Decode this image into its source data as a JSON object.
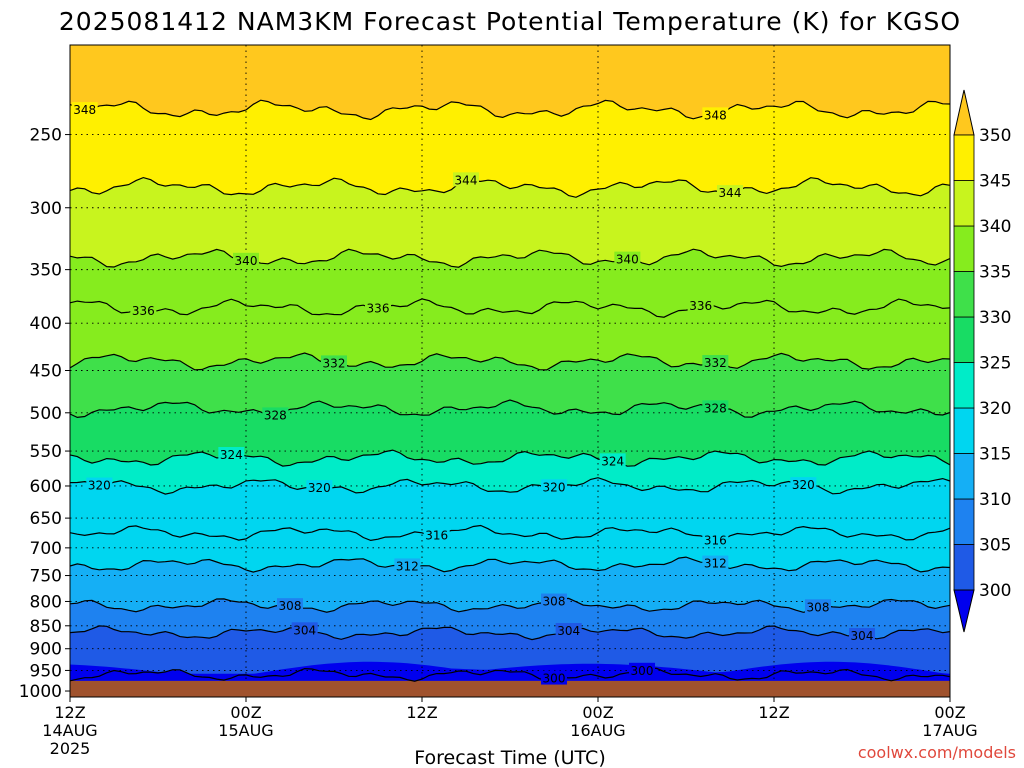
{
  "title": "2025081412 NAM3KM Forecast Potential Temperature (K) for KGSO",
  "credit": "coolwx.com/models",
  "chart_data": {
    "type": "heatmap",
    "title": "2025081412 NAM3KM Forecast Potential Temperature (K) for KGSO",
    "xlabel": "Forecast Time (UTC)",
    "ylabel": "",
    "x_ticks": [
      {
        "hours": 0,
        "lines": [
          "12Z",
          "14AUG",
          "2025"
        ]
      },
      {
        "hours": 12,
        "lines": [
          "00Z",
          "15AUG"
        ]
      },
      {
        "hours": 24,
        "lines": [
          "12Z"
        ]
      },
      {
        "hours": 36,
        "lines": [
          "00Z",
          "16AUG"
        ]
      },
      {
        "hours": 48,
        "lines": [
          "12Z"
        ]
      },
      {
        "hours": 60,
        "lines": [
          "00Z",
          "17AUG"
        ]
      }
    ],
    "xlim": [
      0,
      60
    ],
    "y_ticks": [
      250,
      300,
      350,
      400,
      450,
      500,
      550,
      600,
      650,
      700,
      750,
      800,
      850,
      900,
      950,
      1000
    ],
    "ylim": [
      1015,
      200
    ],
    "y_scale": "log",
    "ground_pressure": 975,
    "grid": true,
    "colorbar": {
      "levels": [
        300,
        305,
        310,
        315,
        320,
        325,
        330,
        335,
        340,
        345,
        350
      ],
      "colors": [
        "#0000ee",
        "#1f5ae6",
        "#1e82f0",
        "#15aff5",
        "#00d6f0",
        "#00ecc8",
        "#18dc64",
        "#3fe04a",
        "#86ec1e",
        "#c8f41e",
        "#fff000",
        "#ffc81e"
      ],
      "extend": "both"
    },
    "contours": [
      {
        "value": 300,
        "pressure": 960,
        "label_hours": [
          33,
          39
        ],
        "labels": [
          "300",
          "300"
        ]
      },
      {
        "value": 304,
        "pressure": 865,
        "label_hours": [
          16,
          34,
          54
        ],
        "labels": [
          "304",
          "304",
          "304"
        ]
      },
      {
        "value": 308,
        "pressure": 808,
        "label_hours": [
          15,
          33,
          51
        ],
        "labels": [
          "308",
          "308",
          "308"
        ]
      },
      {
        "value": 312,
        "pressure": 730,
        "label_hours": [
          23,
          44
        ],
        "labels": [
          "312",
          "312"
        ]
      },
      {
        "value": 316,
        "pressure": 675,
        "label_hours": [
          25,
          44
        ],
        "labels": [
          "316",
          "316"
        ]
      },
      {
        "value": 320,
        "pressure": 600,
        "label_hours": [
          2,
          17,
          33,
          50
        ],
        "labels": [
          "320",
          "320",
          "320",
          "320"
        ]
      },
      {
        "value": 324,
        "pressure": 560,
        "label_hours": [
          11,
          37
        ],
        "labels": [
          "324",
          "324"
        ]
      },
      {
        "value": 328,
        "pressure": 495,
        "label_hours": [
          14,
          44
        ],
        "labels": [
          "328",
          "328"
        ]
      },
      {
        "value": 332,
        "pressure": 440,
        "label_hours": [
          18,
          44
        ],
        "labels": [
          "332",
          "332"
        ]
      },
      {
        "value": 336,
        "pressure": 385,
        "label_hours": [
          5,
          21,
          43
        ],
        "labels": [
          "336",
          "336",
          "336"
        ]
      },
      {
        "value": 340,
        "pressure": 340,
        "label_hours": [
          12,
          38
        ],
        "labels": [
          "340",
          "340"
        ]
      },
      {
        "value": 344,
        "pressure": 285,
        "label_hours": [
          27,
          45
        ],
        "labels": [
          "344",
          "344"
        ]
      },
      {
        "value": 348,
        "pressure": 235,
        "label_hours": [
          1,
          44
        ],
        "labels": [
          "348",
          "348"
        ]
      }
    ]
  }
}
